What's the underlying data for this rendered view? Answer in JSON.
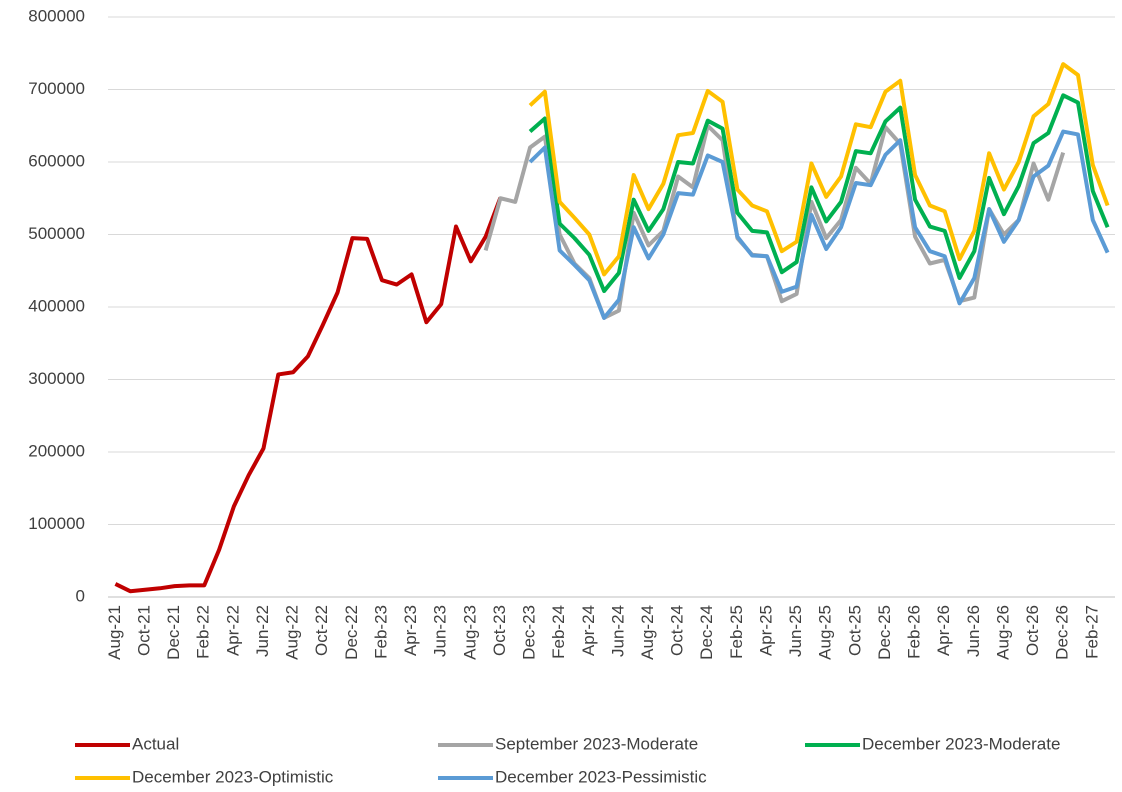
{
  "chart_data": {
    "type": "line",
    "categories": [
      "Aug-21",
      null,
      "Oct-21",
      null,
      "Dec-21",
      null,
      "Feb-22",
      null,
      "Apr-22",
      null,
      "Jun-22",
      null,
      "Aug-22",
      null,
      "Oct-22",
      null,
      "Dec-22",
      null,
      "Feb-23",
      null,
      "Apr-23",
      null,
      "Jun-23",
      null,
      "Aug-23",
      null,
      "Oct-23",
      null,
      "Dec-23",
      null,
      "Feb-24",
      null,
      "Apr-24",
      null,
      "Jun-24",
      null,
      "Aug-24",
      null,
      "Oct-24",
      null,
      "Dec-24",
      null,
      "Feb-25",
      null,
      "Apr-25",
      null,
      "Jun-25",
      null,
      "Aug-25",
      null,
      "Oct-25",
      null,
      "Dec-25",
      null,
      "Feb-26",
      null,
      "Apr-26",
      null,
      "Jun-26",
      null,
      "Aug-26",
      null,
      "Oct-26",
      null,
      "Dec-26",
      null,
      "Feb-27",
      null
    ],
    "series": [
      {
        "name": "Actual",
        "color": "#c00000",
        "values": [
          18000,
          8000,
          10000,
          12000,
          15000,
          16000,
          16000,
          65000,
          125000,
          168000,
          205000,
          307000,
          310000,
          332000,
          375000,
          420000,
          495000,
          494000,
          437000,
          431000,
          445000,
          379000,
          404000,
          511000,
          463000,
          497000,
          551000,
          null,
          null,
          null,
          null,
          null,
          null,
          null,
          null,
          null,
          null,
          null,
          null,
          null,
          null,
          null,
          null,
          null,
          null,
          null,
          null,
          null,
          null,
          null,
          null,
          null,
          null,
          null,
          null,
          null,
          null,
          null,
          null,
          null,
          null,
          null,
          null,
          null,
          null,
          null,
          null,
          null
        ]
      },
      {
        "name": "September 2023-Moderate",
        "color": "#a5a5a5",
        "values": [
          null,
          null,
          null,
          null,
          null,
          null,
          null,
          null,
          null,
          null,
          null,
          null,
          null,
          null,
          null,
          null,
          null,
          null,
          null,
          null,
          null,
          null,
          null,
          null,
          null,
          478000,
          550000,
          545000,
          620000,
          635000,
          500000,
          460000,
          440000,
          385000,
          395000,
          530000,
          485000,
          505000,
          580000,
          565000,
          650000,
          630000,
          495000,
          472000,
          470000,
          408000,
          418000,
          545000,
          495000,
          520000,
          592000,
          570000,
          648000,
          625000,
          497000,
          460000,
          465000,
          408000,
          413000,
          535000,
          500000,
          520000,
          598000,
          548000,
          613000,
          null,
          null,
          null
        ]
      },
      {
        "name": "December 2023-Moderate",
        "color": "#00b050",
        "values": [
          null,
          null,
          null,
          null,
          null,
          null,
          null,
          null,
          null,
          null,
          null,
          null,
          null,
          null,
          null,
          null,
          null,
          null,
          null,
          null,
          null,
          null,
          null,
          null,
          null,
          null,
          null,
          null,
          642000,
          660000,
          515000,
          495000,
          472000,
          422000,
          447000,
          548000,
          505000,
          535000,
          600000,
          598000,
          657000,
          646000,
          530000,
          505000,
          503000,
          448000,
          462000,
          565000,
          518000,
          545000,
          615000,
          612000,
          656000,
          675000,
          548000,
          511000,
          505000,
          440000,
          477000,
          578000,
          528000,
          567000,
          626000,
          640000,
          692000,
          682000,
          560000,
          510000
        ]
      },
      {
        "name": "December 2023-Optimistic",
        "color": "#ffc000",
        "values": [
          null,
          null,
          null,
          null,
          null,
          null,
          null,
          null,
          null,
          null,
          null,
          null,
          null,
          null,
          null,
          null,
          null,
          null,
          null,
          null,
          null,
          null,
          null,
          null,
          null,
          null,
          null,
          null,
          678000,
          697000,
          545000,
          523000,
          500000,
          445000,
          470000,
          582000,
          535000,
          570000,
          637000,
          640000,
          698000,
          683000,
          562000,
          540000,
          532000,
          477000,
          490000,
          598000,
          552000,
          580000,
          652000,
          648000,
          697000,
          712000,
          582000,
          540000,
          532000,
          466000,
          505000,
          612000,
          562000,
          600000,
          663000,
          680000,
          735000,
          720000,
          596000,
          540000
        ]
      },
      {
        "name": "December 2023-Pessimistic",
        "color": "#5b9bd5",
        "values": [
          null,
          null,
          null,
          null,
          null,
          null,
          null,
          null,
          null,
          null,
          null,
          null,
          null,
          null,
          null,
          null,
          null,
          null,
          null,
          null,
          null,
          null,
          null,
          null,
          null,
          null,
          null,
          null,
          600000,
          620000,
          478000,
          458000,
          437000,
          385000,
          410000,
          510000,
          467000,
          500000,
          557000,
          555000,
          609000,
          600000,
          497000,
          471000,
          470000,
          421000,
          428000,
          527000,
          480000,
          510000,
          571000,
          568000,
          610000,
          630000,
          510000,
          477000,
          470000,
          405000,
          440000,
          535000,
          490000,
          520000,
          580000,
          595000,
          642000,
          638000,
          520000,
          475000
        ]
      }
    ],
    "ylim": [
      0,
      800000
    ],
    "yticks": [
      0,
      100000,
      200000,
      300000,
      400000,
      500000,
      600000,
      700000,
      800000
    ],
    "grid": true,
    "legend": "bottom"
  }
}
